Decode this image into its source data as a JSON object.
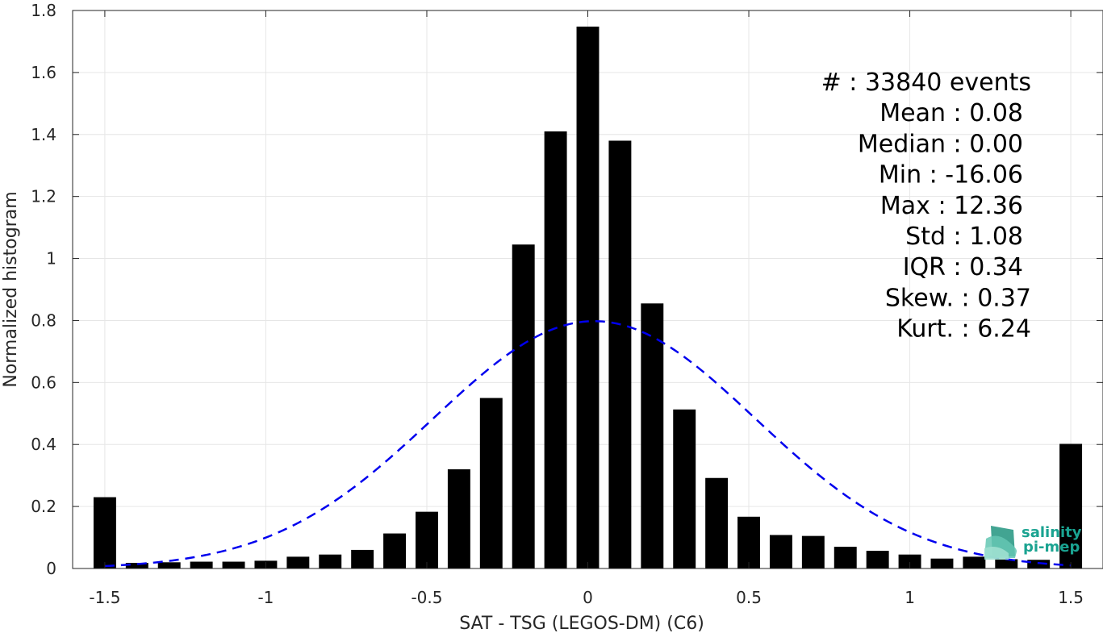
{
  "chart_data": {
    "type": "bar",
    "xlabel": "SAT - TSG (LEGOS-DM) (C6)",
    "ylabel": "Normalized histogram",
    "xlim": [
      -1.6,
      1.6
    ],
    "ylim": [
      0,
      1.8
    ],
    "xticks": [
      -1.5,
      -1,
      -0.5,
      0,
      0.5,
      1,
      1.5
    ],
    "xtick_labels": [
      "-1.5",
      "-1",
      "-0.5",
      "0",
      "0.5",
      "1",
      "1.5"
    ],
    "yticks": [
      0,
      0.2,
      0.4,
      0.6,
      0.8,
      1,
      1.2,
      1.4,
      1.6,
      1.8
    ],
    "ytick_labels": [
      "0",
      "0.2",
      "0.4",
      "0.6",
      "0.8",
      "1",
      "1.2",
      "1.4",
      "1.6",
      "1.8"
    ],
    "grid": true,
    "bar_width": 0.07,
    "bar_color": "#000000",
    "x": [
      -1.5,
      -1.4,
      -1.3,
      -1.2,
      -1.1,
      -1.0,
      -0.9,
      -0.8,
      -0.7,
      -0.6,
      -0.5,
      -0.4,
      -0.3,
      -0.2,
      -0.1,
      0.0,
      0.1,
      0.2,
      0.3,
      0.4,
      0.5,
      0.6,
      0.7,
      0.8,
      0.9,
      1.0,
      1.1,
      1.2,
      1.3,
      1.4,
      1.5
    ],
    "values": [
      0.23,
      0.018,
      0.02,
      0.022,
      0.022,
      0.025,
      0.038,
      0.045,
      0.06,
      0.113,
      0.183,
      0.32,
      0.55,
      1.045,
      1.41,
      1.748,
      1.38,
      0.855,
      0.513,
      0.292,
      0.167,
      0.108,
      0.105,
      0.07,
      0.057,
      0.045,
      0.032,
      0.038,
      0.03,
      0.028,
      0.402
    ],
    "fit_curve": {
      "style": "dashed",
      "color": "#0000ee",
      "mean": 0.02,
      "std": 0.5,
      "x_range": [
        -1.5,
        1.5
      ]
    },
    "stats_lines": [
      "#  : 33840 events",
      "Mean : 0.08",
      "Median : 0.00",
      "Min : -16.06",
      "Max : 12.36",
      "Std : 1.08",
      "IQR : 0.34",
      "Skew. : 0.37",
      "Kurt. : 6.24"
    ]
  },
  "logo": {
    "line1": "salinity",
    "line2": "pi-mep",
    "color": "#1aa391"
  }
}
